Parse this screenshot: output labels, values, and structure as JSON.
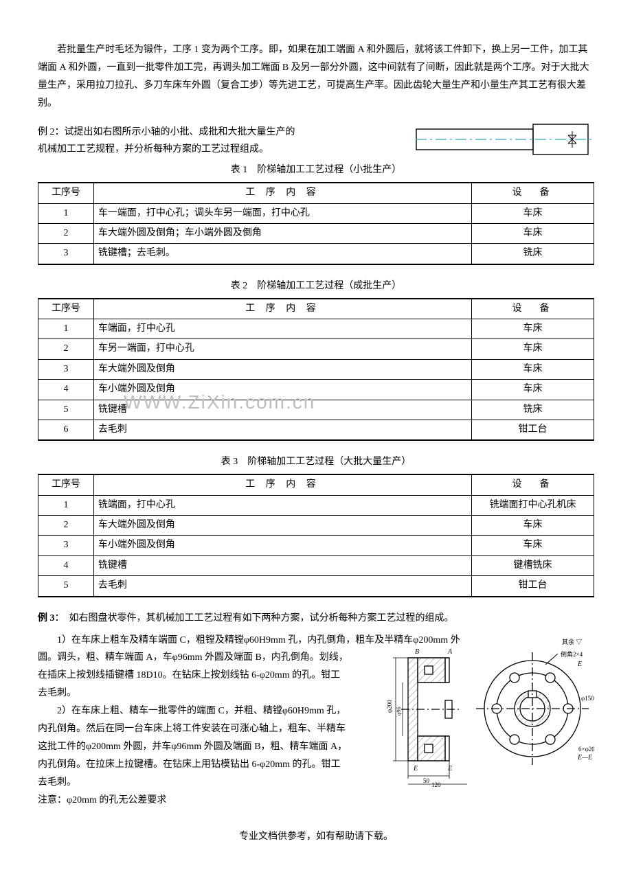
{
  "intro": "若批量生产时毛坯为锻件，工序 1 变为两个工序。即，如果在加工端面 A 和外圆后，就将该工件卸下，换上另一工件，加工其端面 A 和外圆，一直到一批零件加工完，再调头加工端面 B 及另一部分外圆，这中间就有了间断，因此就是两个工序。对于大批大量生产，采用拉刀拉孔、多刀车床车外圆（复合工步）等先进工艺，可提高生产率。因此齿轮大量生产和小量生产其工艺有很大差别。",
  "ex2_l1": "例 2：试提出如右图所示小轴的小批、成批和大批大量生产的",
  "ex2_l2": "机械加工工艺规程，并分析每种方案的工艺过程组成。",
  "t1_cap": "表 1　阶梯轴加工工艺过程（小批生产）",
  "t2_cap": "表 2　阶梯轴加工工艺过程（成批生产）",
  "t3_cap": "表 3　阶梯轴加工工艺过程（大批大量生产）",
  "h_n": "工序号",
  "h_c": "工 序 内 容",
  "h_e": "设　备",
  "t1_rows": [
    {
      "n": "1",
      "c": "车一端面，打中心孔；调头车另一端面，打中心孔",
      "e": "车床"
    },
    {
      "n": "2",
      "c": "车大端外圆及倒角；车小端外圆及倒角",
      "e": "车床"
    },
    {
      "n": "3",
      "c": "铣键槽；去毛刺。",
      "e": "铣床"
    }
  ],
  "t2_rows": [
    {
      "n": "1",
      "c": "车端面，打中心孔",
      "e": "车床"
    },
    {
      "n": "2",
      "c": "车另一端面，打中心孔",
      "e": "车床"
    },
    {
      "n": "3",
      "c": "车大端外圆及倒角",
      "e": "车床"
    },
    {
      "n": "4",
      "c": "车小端外圆及倒角",
      "e": "车床"
    },
    {
      "n": "5",
      "c": "铣键槽",
      "e": "铣床"
    },
    {
      "n": "6",
      "c": "去毛刺",
      "e": "钳工台"
    }
  ],
  "t3_rows": [
    {
      "n": "1",
      "c": "铣端面，打中心孔",
      "e": "铣端面打中心孔机床"
    },
    {
      "n": "2",
      "c": "车大端外圆及倒角",
      "e": "车床"
    },
    {
      "n": "3",
      "c": "车小端外圆及倒角",
      "e": "车床"
    },
    {
      "n": "4",
      "c": "铣键槽",
      "e": "键槽铣床"
    },
    {
      "n": "5",
      "c": "去毛刺",
      "e": "钳工台"
    }
  ],
  "ex3_title": "例 3",
  "ex3_after": "：　如右图盘状零件，其机械加工工艺过程有如下两种方案，试分析每种方案工艺过程的组成。",
  "ex3_p1a": "1）在车床上粗车及精车端面 C，粗镗及精镗φ60H9mm 孔，内孔倒角，粗车及半精车φ200mm 外",
  "ex3_p1b": "圆。调头，粗、精车端面 A，车φ96mm 外圆及端面 B，内孔倒角。划线，在插床上按划线插键槽 18D10。在钻床上按划线钻 6-φ20mm 的孔。钳工去毛刺。",
  "ex3_p2": "2）在车床上粗、精车一批零件的端面 C，并粗、精镗φ60H9mm 孔，内孔倒角。然后在同一台车床上将工件安装在可涨心轴上，粗车、半精车这批工件的φ200mm 外圆，并车φ96mm 外圆及端面 B，粗、精车端面 A，内孔倒角。在拉床上拉键槽。在钻床上用钻模钻出 6-φ20mm 的孔。钳工去毛刺。",
  "ex3_note": "注意：φ20mm 的孔无公差要求",
  "wm": "WWW.ZiXin.com.cn",
  "footer": "专业文档供参考，如有帮助请下载。",
  "style": {
    "stroke": "#000000",
    "hatch": "#7d8aa0",
    "center": "#2aa6ca",
    "bg": "#ffffff"
  }
}
